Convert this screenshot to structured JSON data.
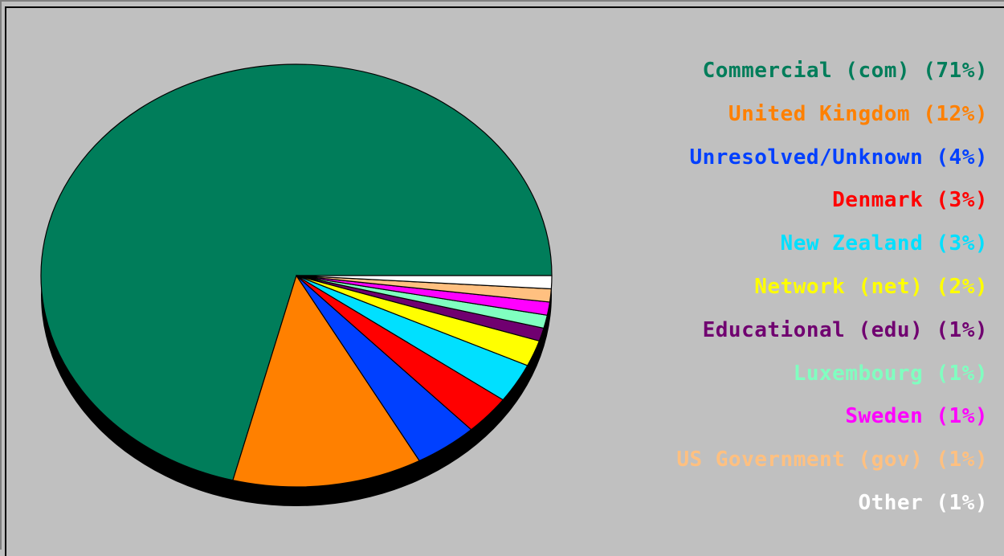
{
  "chart_data": {
    "type": "pie",
    "title": "",
    "legend_position": "right",
    "slices": [
      {
        "label": "Commercial (com) (71%)",
        "value": 71,
        "color": "#007d5a"
      },
      {
        "label": "United Kingdom (12%)",
        "value": 12,
        "color": "#ff8000"
      },
      {
        "label": "Unresolved/Unknown (4%)",
        "value": 4,
        "color": "#0040ff"
      },
      {
        "label": "Denmark (3%)",
        "value": 3,
        "color": "#ff0000"
      },
      {
        "label": "New Zealand (3%)",
        "value": 3,
        "color": "#00e0ff"
      },
      {
        "label": "Network (net) (2%)",
        "value": 2,
        "color": "#ffff00"
      },
      {
        "label": "Educational (edu) (1%)",
        "value": 1,
        "color": "#700070"
      },
      {
        "label": "Luxembourg (1%)",
        "value": 1,
        "color": "#80ffc0"
      },
      {
        "label": "Sweden (1%)",
        "value": 1,
        "color": "#ff00ff"
      },
      {
        "label": "US Government (gov) (1%)",
        "value": 1,
        "color": "#ffc080"
      },
      {
        "label": "Other (1%)",
        "value": 1,
        "color": "#ffffff"
      }
    ]
  }
}
